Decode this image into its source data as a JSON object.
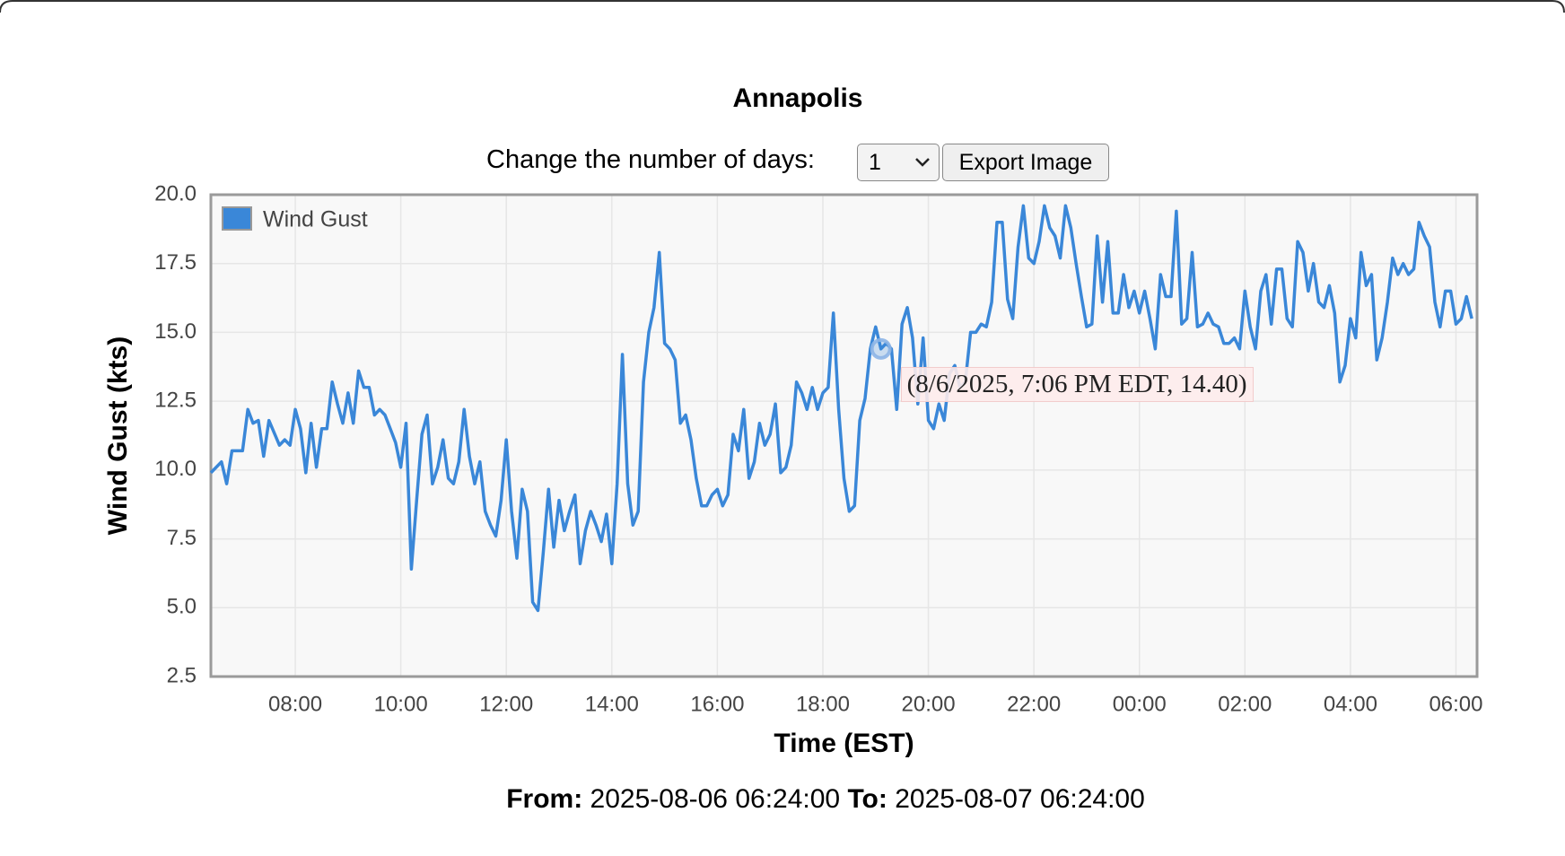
{
  "page": {
    "controls_label": "Change the number of days:",
    "days_option": "1",
    "export_button": "Export Image",
    "from_label": "From:",
    "from_value": "2025-08-06 06:24:00",
    "to_label": "To:",
    "to_value": "2025-08-07 06:24:00"
  },
  "chart_data": {
    "type": "line",
    "title": "Annapolis",
    "xlabel": "Time (EST)",
    "ylabel": "Wind Gust (kts)",
    "grid": true,
    "legend": "top-left",
    "xlim": [
      "2025-08-06 06:24",
      "2025-08-07 06:24"
    ],
    "ylim": [
      2.5,
      20
    ],
    "yticks": [
      2.5,
      {
        "value": 5,
        "label": "5.0"
      },
      7.5,
      {
        "value": 10,
        "label": "10.0"
      },
      12.5,
      {
        "value": 15,
        "label": "15.0"
      },
      17.5,
      {
        "value": 20,
        "label": "20.0"
      }
    ],
    "xticks": [
      {
        "value": "2025-08-06 08:00",
        "label": "08:00"
      },
      {
        "value": "2025-08-06 10:00",
        "label": "10:00"
      },
      {
        "value": "2025-08-06 12:00",
        "label": "12:00"
      },
      {
        "value": "2025-08-06 14:00",
        "label": "14:00"
      },
      {
        "value": "2025-08-06 16:00",
        "label": "16:00"
      },
      {
        "value": "2025-08-06 18:00",
        "label": "18:00"
      },
      {
        "value": "2025-08-06 20:00",
        "label": "20:00"
      },
      {
        "value": "2025-08-06 22:00",
        "label": "22:00"
      },
      {
        "value": "2025-08-07 00:00",
        "label": "00:00"
      },
      {
        "value": "2025-08-07 02:00",
        "label": "02:00"
      },
      {
        "value": "2025-08-07 04:00",
        "label": "04:00"
      },
      {
        "value": "2025-08-07 06:00",
        "label": "06:00"
      }
    ],
    "x": [
      "2025-08-06 06:24",
      "2025-08-06 06:36",
      "2025-08-06 06:42",
      "2025-08-06 06:48",
      "2025-08-06 07:00",
      "2025-08-06 07:06",
      "2025-08-06 07:12",
      "2025-08-06 07:18",
      "2025-08-06 07:24",
      "2025-08-06 07:30",
      "2025-08-06 07:42",
      "2025-08-06 07:48",
      "2025-08-06 07:54",
      "2025-08-06 08:00",
      "2025-08-06 08:06",
      "2025-08-06 08:12",
      "2025-08-06 08:18",
      "2025-08-06 08:24",
      "2025-08-06 08:30",
      "2025-08-06 08:36",
      "2025-08-06 08:42",
      "2025-08-06 08:48",
      "2025-08-06 08:54",
      "2025-08-06 09:00",
      "2025-08-06 09:06",
      "2025-08-06 09:12",
      "2025-08-06 09:18",
      "2025-08-06 09:24",
      "2025-08-06 09:30",
      "2025-08-06 09:36",
      "2025-08-06 09:42",
      "2025-08-06 09:48",
      "2025-08-06 09:54",
      "2025-08-06 10:00",
      "2025-08-06 10:06",
      "2025-08-06 10:12",
      "2025-08-06 10:18",
      "2025-08-06 10:24",
      "2025-08-06 10:30",
      "2025-08-06 10:36",
      "2025-08-06 10:42",
      "2025-08-06 10:48",
      "2025-08-06 10:54",
      "2025-08-06 11:00",
      "2025-08-06 11:06",
      "2025-08-06 11:12",
      "2025-08-06 11:18",
      "2025-08-06 11:24",
      "2025-08-06 11:30",
      "2025-08-06 11:36",
      "2025-08-06 11:42",
      "2025-08-06 11:48",
      "2025-08-06 11:54",
      "2025-08-06 12:00",
      "2025-08-06 12:06",
      "2025-08-06 12:12",
      "2025-08-06 12:18",
      "2025-08-06 12:24",
      "2025-08-06 12:30",
      "2025-08-06 12:36",
      "2025-08-06 12:42",
      "2025-08-06 12:48",
      "2025-08-06 12:54",
      "2025-08-06 13:00",
      "2025-08-06 13:06",
      "2025-08-06 13:12",
      "2025-08-06 13:18",
      "2025-08-06 13:24",
      "2025-08-06 13:30",
      "2025-08-06 13:36",
      "2025-08-06 13:42",
      "2025-08-06 13:48",
      "2025-08-06 13:54",
      "2025-08-06 14:00",
      "2025-08-06 14:06",
      "2025-08-06 14:12",
      "2025-08-06 14:18",
      "2025-08-06 14:24",
      "2025-08-06 14:30",
      "2025-08-06 14:36",
      "2025-08-06 14:42",
      "2025-08-06 14:48",
      "2025-08-06 14:54",
      "2025-08-06 15:00",
      "2025-08-06 15:06",
      "2025-08-06 15:12",
      "2025-08-06 15:18",
      "2025-08-06 15:24",
      "2025-08-06 15:30",
      "2025-08-06 15:36",
      "2025-08-06 15:42",
      "2025-08-06 15:48",
      "2025-08-06 15:54",
      "2025-08-06 16:00",
      "2025-08-06 16:06",
      "2025-08-06 16:12",
      "2025-08-06 16:18",
      "2025-08-06 16:24",
      "2025-08-06 16:30",
      "2025-08-06 16:36",
      "2025-08-06 16:42",
      "2025-08-06 16:48",
      "2025-08-06 16:54",
      "2025-08-06 17:00",
      "2025-08-06 17:06",
      "2025-08-06 17:12",
      "2025-08-06 17:18",
      "2025-08-06 17:24",
      "2025-08-06 17:30",
      "2025-08-06 17:36",
      "2025-08-06 17:42",
      "2025-08-06 17:48",
      "2025-08-06 17:54",
      "2025-08-06 18:00",
      "2025-08-06 18:06",
      "2025-08-06 18:12",
      "2025-08-06 18:18",
      "2025-08-06 18:24",
      "2025-08-06 18:30",
      "2025-08-06 18:36",
      "2025-08-06 18:42",
      "2025-08-06 18:48",
      "2025-08-06 18:54",
      "2025-08-06 19:00",
      "2025-08-06 19:06",
      "2025-08-06 19:12",
      "2025-08-06 19:18",
      "2025-08-06 19:24",
      "2025-08-06 19:30",
      "2025-08-06 19:36",
      "2025-08-06 19:42",
      "2025-08-06 19:48",
      "2025-08-06 19:54",
      "2025-08-06 20:00",
      "2025-08-06 20:06",
      "2025-08-06 20:12",
      "2025-08-06 20:18",
      "2025-08-06 20:24",
      "2025-08-06 20:30",
      "2025-08-06 20:36",
      "2025-08-06 20:42",
      "2025-08-06 20:48",
      "2025-08-06 20:54",
      "2025-08-06 21:00",
      "2025-08-06 21:06",
      "2025-08-06 21:12",
      "2025-08-06 21:18",
      "2025-08-06 21:24",
      "2025-08-06 21:30",
      "2025-08-06 21:36",
      "2025-08-06 21:42",
      "2025-08-06 21:48",
      "2025-08-06 21:54",
      "2025-08-06 22:00",
      "2025-08-06 22:06",
      "2025-08-06 22:12",
      "2025-08-06 22:18",
      "2025-08-06 22:24",
      "2025-08-06 22:30",
      "2025-08-06 22:36",
      "2025-08-06 22:42",
      "2025-08-06 22:48",
      "2025-08-06 22:54",
      "2025-08-06 23:00",
      "2025-08-06 23:06",
      "2025-08-06 23:12",
      "2025-08-06 23:18",
      "2025-08-06 23:24",
      "2025-08-06 23:30",
      "2025-08-06 23:36",
      "2025-08-06 23:42",
      "2025-08-06 23:48",
      "2025-08-06 23:54",
      "2025-08-07 00:00",
      "2025-08-07 00:06",
      "2025-08-07 00:12",
      "2025-08-07 00:18",
      "2025-08-07 00:24",
      "2025-08-07 00:30",
      "2025-08-07 00:36",
      "2025-08-07 00:42",
      "2025-08-07 00:48",
      "2025-08-07 00:54",
      "2025-08-07 01:00",
      "2025-08-07 01:06",
      "2025-08-07 01:12",
      "2025-08-07 01:18",
      "2025-08-07 01:24",
      "2025-08-07 01:30",
      "2025-08-07 01:36",
      "2025-08-07 01:42",
      "2025-08-07 01:48",
      "2025-08-07 01:54",
      "2025-08-07 02:00",
      "2025-08-07 02:06",
      "2025-08-07 02:12",
      "2025-08-07 02:18",
      "2025-08-07 02:24",
      "2025-08-07 02:30",
      "2025-08-07 02:36",
      "2025-08-07 02:42",
      "2025-08-07 02:48",
      "2025-08-07 02:54",
      "2025-08-07 03:00",
      "2025-08-07 03:06",
      "2025-08-07 03:12",
      "2025-08-07 03:18",
      "2025-08-07 03:24",
      "2025-08-07 03:30",
      "2025-08-07 03:36",
      "2025-08-07 03:42",
      "2025-08-07 03:48",
      "2025-08-07 03:54",
      "2025-08-07 04:00",
      "2025-08-07 04:06",
      "2025-08-07 04:12",
      "2025-08-07 04:18",
      "2025-08-07 04:24",
      "2025-08-07 04:30",
      "2025-08-07 04:36",
      "2025-08-07 04:42",
      "2025-08-07 04:48",
      "2025-08-07 04:54",
      "2025-08-07 05:00",
      "2025-08-07 05:06",
      "2025-08-07 05:12",
      "2025-08-07 05:18",
      "2025-08-07 05:24",
      "2025-08-07 05:30",
      "2025-08-07 05:36",
      "2025-08-07 05:42",
      "2025-08-07 05:48",
      "2025-08-07 05:54",
      "2025-08-07 06:00",
      "2025-08-07 06:06",
      "2025-08-07 06:12",
      "2025-08-07 06:18"
    ],
    "series": [
      {
        "name": "Wind Gust",
        "color": "#3a87d8",
        "values": [
          9.9,
          10.3,
          9.5,
          10.7,
          10.7,
          12.2,
          11.7,
          11.8,
          10.5,
          11.8,
          10.9,
          11.1,
          10.9,
          12.2,
          11.5,
          9.9,
          11.7,
          10.1,
          11.5,
          11.5,
          13.2,
          12.4,
          11.7,
          12.8,
          11.7,
          13.6,
          13.0,
          13.0,
          12.0,
          12.2,
          12.0,
          11.5,
          11.0,
          10.1,
          11.7,
          6.4,
          8.9,
          11.3,
          12.0,
          9.5,
          10.1,
          11.1,
          9.7,
          9.5,
          10.3,
          12.2,
          10.5,
          9.5,
          10.3,
          8.5,
          8.0,
          7.6,
          8.9,
          11.1,
          8.5,
          6.8,
          9.3,
          8.5,
          5.2,
          4.9,
          7.0,
          9.3,
          7.2,
          8.9,
          7.8,
          8.5,
          9.1,
          6.6,
          7.8,
          8.5,
          8.0,
          7.4,
          8.4,
          6.6,
          9.5,
          14.2,
          9.5,
          8.0,
          8.5,
          13.2,
          15.0,
          15.9,
          17.9,
          14.6,
          14.4,
          14.0,
          11.7,
          12.0,
          11.1,
          9.7,
          8.7,
          8.7,
          9.1,
          9.3,
          8.7,
          9.1,
          11.3,
          10.7,
          12.2,
          9.7,
          10.3,
          11.7,
          10.9,
          11.3,
          12.4,
          9.9,
          10.1,
          10.9,
          13.2,
          12.8,
          12.2,
          13.0,
          12.2,
          12.8,
          13.0,
          15.7,
          12.2,
          9.7,
          8.5,
          8.7,
          11.8,
          12.6,
          14.4,
          15.2,
          14.4,
          14.6,
          14.4,
          12.2,
          15.3,
          15.9,
          14.8,
          12.4,
          14.8,
          11.8,
          11.5,
          12.4,
          11.8,
          13.5,
          13.8,
          13.0,
          13.2,
          15.0,
          15.0,
          15.3,
          15.2,
          16.1,
          19.0,
          19.0,
          16.2,
          15.5,
          18.1,
          19.6,
          17.7,
          17.5,
          18.3,
          19.6,
          18.8,
          18.5,
          17.7,
          19.6,
          18.8,
          17.5,
          16.3,
          15.2,
          15.3,
          18.5,
          16.1,
          18.3,
          15.7,
          15.7,
          17.1,
          15.9,
          16.5,
          15.7,
          16.5,
          15.5,
          14.4,
          17.1,
          16.3,
          16.3,
          19.4,
          15.3,
          15.5,
          17.9,
          15.2,
          15.3,
          15.7,
          15.3,
          15.2,
          14.6,
          14.6,
          14.8,
          14.4,
          16.5,
          15.2,
          14.4,
          16.5,
          17.1,
          15.3,
          17.3,
          17.3,
          15.5,
          15.2,
          18.3,
          17.9,
          16.5,
          17.5,
          16.1,
          15.9,
          16.7,
          15.7,
          13.2,
          13.8,
          15.5,
          14.8,
          17.9,
          16.7,
          17.1,
          14.0,
          14.8,
          16.1,
          17.7,
          17.1,
          17.5,
          17.1,
          17.3,
          19.0,
          18.5,
          18.1,
          16.1,
          15.2,
          16.5,
          16.5,
          15.3,
          15.5,
          16.3,
          15.5
        ]
      }
    ],
    "tooltip": {
      "x": "2025-08-06 19:06",
      "y": 14.4,
      "label": "(8/6/2025, 7:06 PM EDT, 14.40)"
    }
  }
}
